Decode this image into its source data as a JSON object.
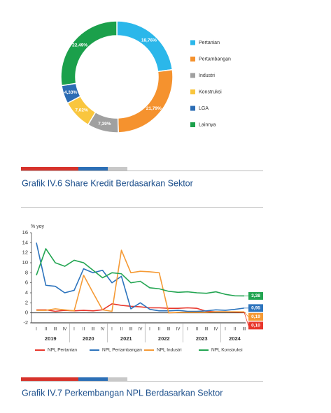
{
  "chart_data": [
    {
      "type": "donut",
      "title": "Grafik IV.6 Share Kredit Berdasarkan Sektor",
      "categories": [
        "Pertanian",
        "Pertambangan",
        "Industri",
        "Konstruksi",
        "LGA",
        "Lainnya"
      ],
      "values": [
        18.76,
        21.79,
        7.39,
        7.02,
        4.33,
        22.49
      ],
      "value_labels": [
        "18,76%",
        "21,79%",
        "7,39%",
        "7,02%",
        "4,33%",
        "22,49%"
      ],
      "colors": [
        "#2bb7ea",
        "#f5922e",
        "#a0a0a0",
        "#f9c63e",
        "#2b6cb4",
        "#1ba04b"
      ]
    },
    {
      "type": "line",
      "title": "Grafik IV.7 Perkembangan NPL Berdasarkan Sektor",
      "ylabel": "% yoy",
      "categories": [
        "I",
        "II",
        "III",
        "IV",
        "I",
        "II",
        "III",
        "IV",
        "I",
        "II",
        "III",
        "IV",
        "I",
        "II",
        "III",
        "IV",
        "I",
        "II",
        "III",
        "IV",
        "I",
        "II",
        "III"
      ],
      "year_labels": [
        "2019",
        "2020",
        "2021",
        "2022",
        "2023",
        "2024"
      ],
      "ylim": [
        -2,
        16
      ],
      "yticks": [
        -2,
        0,
        2,
        4,
        6,
        8,
        10,
        12,
        14,
        16
      ],
      "series": [
        {
          "name": "NPL Pertanian",
          "color": "#e8372c",
          "values": [
            0.6,
            0.6,
            0.3,
            0.5,
            0.4,
            0.5,
            0.4,
            0.6,
            1.8,
            1.5,
            1.3,
            1.2,
            1.0,
            1.0,
            0.9,
            0.9,
            1.0,
            0.9,
            0.3,
            0.2,
            0.2,
            0.15,
            0.1
          ],
          "end_label": "0,10"
        },
        {
          "name": "NPL Pertambangan",
          "color": "#2d74bd",
          "values": [
            14,
            5.5,
            5.3,
            4,
            4.5,
            8.8,
            8,
            8.5,
            6,
            7.3,
            0.8,
            2,
            0.7,
            0.4,
            0.4,
            0.5,
            0.3,
            0.3,
            0.4,
            0.6,
            0.5,
            0.7,
            0.95
          ],
          "end_label": "0,95"
        },
        {
          "name": "NPL Industri",
          "color": "#f59a35",
          "values": [
            0.5,
            0.5,
            0.8,
            0.6,
            0.4,
            7.5,
            4,
            0.6,
            0.3,
            12.5,
            8,
            8.3,
            8.2,
            8,
            0,
            0.1,
            0.1,
            0.1,
            0.1,
            0.2,
            0.2,
            0.2,
            0.19
          ],
          "end_label": "0,19"
        },
        {
          "name": "NPL Konstruksi",
          "color": "#23a552",
          "values": [
            7.5,
            12.8,
            10,
            9.3,
            10.5,
            10,
            8.5,
            7,
            8,
            7.8,
            6,
            6.3,
            5,
            4.8,
            4.3,
            4.1,
            4.2,
            4,
            3.9,
            4.2,
            3.7,
            3.4,
            3.38
          ],
          "end_label": "3,38"
        }
      ]
    }
  ]
}
